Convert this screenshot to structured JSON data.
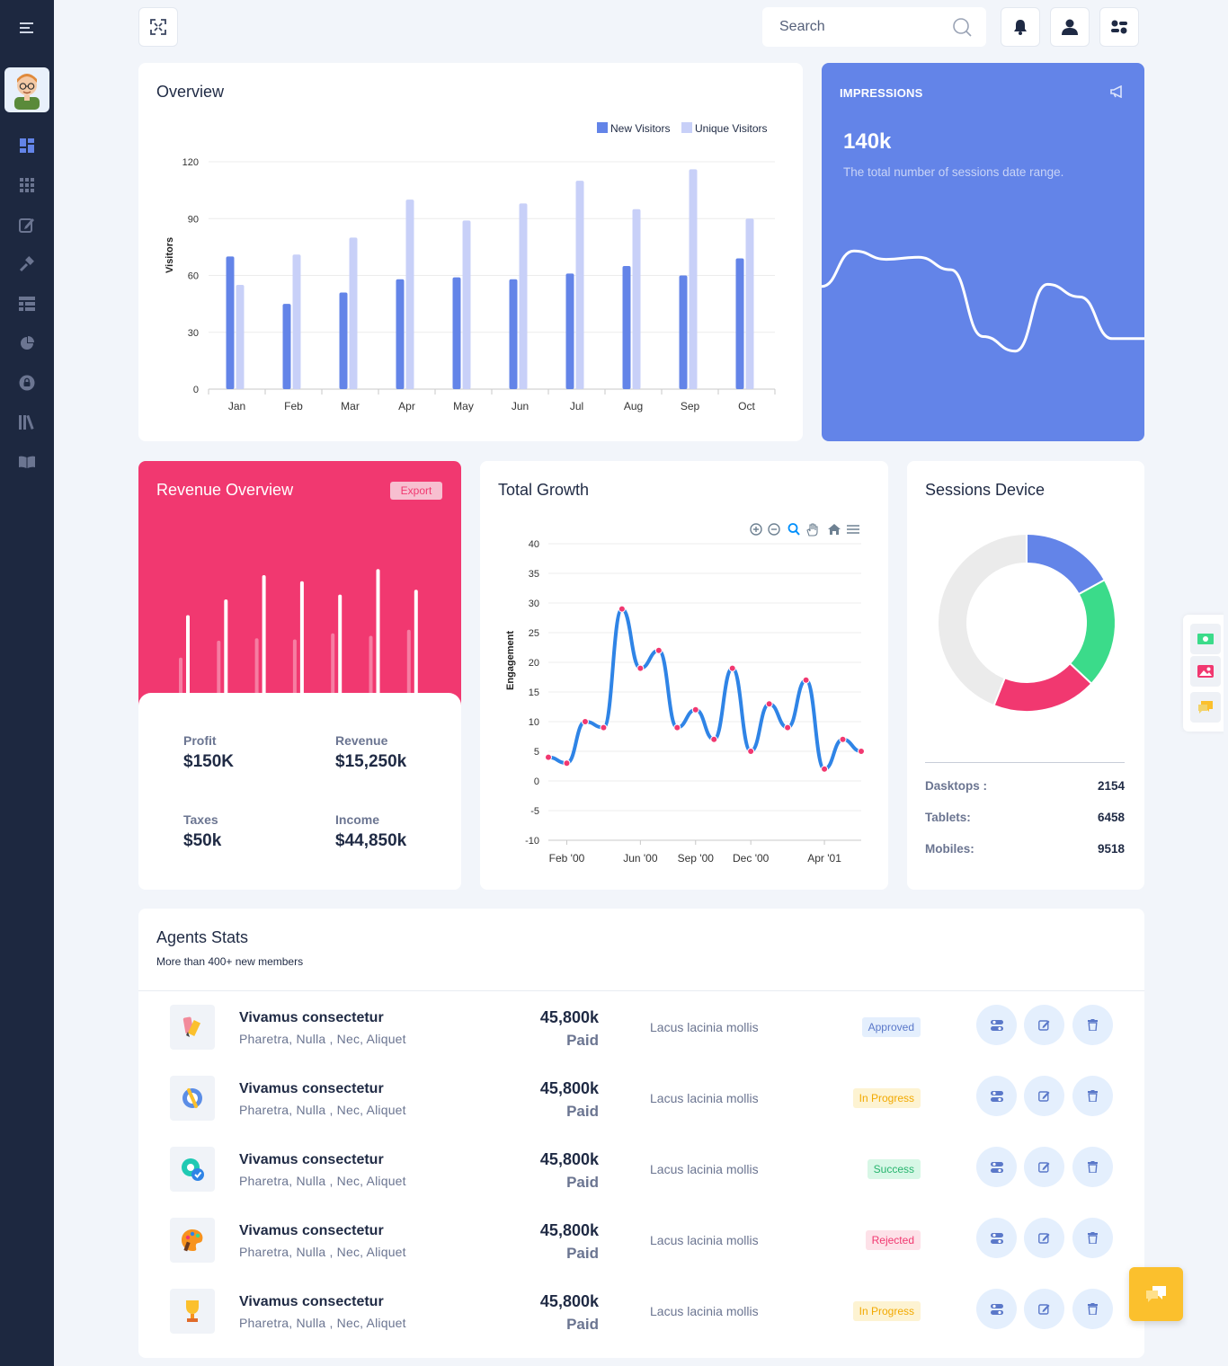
{
  "search": {
    "placeholder": "Search"
  },
  "overview": {
    "title": "Overview",
    "legend": [
      "New Visitors",
      "Unique Visitors"
    ]
  },
  "impressions": {
    "label": "IMPRESSIONS",
    "value": "140k",
    "description": "The total number of sessions date range."
  },
  "revenue": {
    "title": "Revenue Overview",
    "export_label": "Export",
    "stats": [
      {
        "label": "Profit",
        "value": "$150K"
      },
      {
        "label": "Revenue",
        "value": "$15,250k"
      },
      {
        "label": "Taxes",
        "value": "$50k"
      },
      {
        "label": "Income",
        "value": "$44,850k"
      }
    ]
  },
  "growth": {
    "title": "Total Growth"
  },
  "sessions": {
    "title": "Sessions Device",
    "rows": [
      {
        "label": "Dasktops :",
        "value": "2154"
      },
      {
        "label": "Tablets:",
        "value": "6458"
      },
      {
        "label": "Mobiles:",
        "value": "9518"
      }
    ]
  },
  "agents": {
    "title": "Agents Stats",
    "subtitle": "More than 400+ new members",
    "rows": [
      {
        "icon": "pencil-paint-icon",
        "name": "Vivamus consectetur",
        "tags": "Pharetra, Nulla , Nec, Aliquet",
        "amount": "45,800k",
        "paid": "Paid",
        "desc": "Lacus lacinia mollis",
        "status": "Approved"
      },
      {
        "icon": "wrench-gear-icon",
        "name": "Vivamus consectetur",
        "tags": "Pharetra, Nulla , Nec, Aliquet",
        "amount": "45,800k",
        "paid": "Paid",
        "desc": "Lacus lacinia mollis",
        "status": "In Progress"
      },
      {
        "icon": "gear-check-icon",
        "name": "Vivamus consectetur",
        "tags": "Pharetra, Nulla , Nec, Aliquet",
        "amount": "45,800k",
        "paid": "Paid",
        "desc": "Lacus lacinia mollis",
        "status": "Success"
      },
      {
        "icon": "palette-icon",
        "name": "Vivamus consectetur",
        "tags": "Pharetra, Nulla , Nec, Aliquet",
        "amount": "45,800k",
        "paid": "Paid",
        "desc": "Lacus lacinia mollis",
        "status": "Rejected"
      },
      {
        "icon": "trophy-icon",
        "name": "Vivamus consectetur",
        "tags": "Pharetra, Nulla , Nec, Aliquet",
        "amount": "45,800k",
        "paid": "Paid",
        "desc": "Lacus lacinia mollis",
        "status": "In Progress"
      }
    ]
  },
  "colors": {
    "sidebar": "#1d2840",
    "primary": "#6384e8",
    "pink": "#f13870",
    "green": "#3bdb8a",
    "line_blue": "#2f84e6"
  },
  "chart_data": [
    {
      "type": "bar",
      "title": "",
      "xlabel": "",
      "ylabel": "Visitors",
      "categories": [
        "Jan",
        "Feb",
        "Mar",
        "Apr",
        "May",
        "Jun",
        "Jul",
        "Aug",
        "Sep",
        "Oct"
      ],
      "series": [
        {
          "name": "New Visitors",
          "values": [
            70,
            45,
            51,
            58,
            59,
            58,
            61,
            65,
            60,
            69
          ]
        },
        {
          "name": "Unique Visitors",
          "values": [
            55,
            71,
            80,
            100,
            89,
            98,
            110,
            95,
            116,
            90
          ]
        }
      ],
      "ylim": [
        0,
        120
      ],
      "yticks": [
        0,
        30,
        60,
        90,
        120
      ],
      "grid": true,
      "legend": "top-right"
    },
    {
      "type": "area",
      "title": "",
      "series": [
        {
          "values": [
            43,
            60,
            56,
            57,
            51,
            19,
            12,
            44,
            38,
            18,
            18
          ]
        }
      ]
    },
    {
      "type": "bar",
      "title": "",
      "series": [
        {
          "values": [
            67,
            80,
            100,
            95,
            84,
            105,
            88
          ]
        },
        {
          "values": [
            32,
            46,
            48,
            47,
            52,
            50,
            55
          ]
        }
      ]
    },
    {
      "type": "line",
      "title": "",
      "xlabel": "",
      "ylabel": "Engagement",
      "x": [
        "Jan '00",
        "Feb '00",
        "Mar '00",
        "Apr '00",
        "May '00",
        "Jun '00",
        "Jul '00",
        "Aug '00",
        "Sep '00",
        "Oct '00",
        "Nov '00",
        "Dec '00",
        "Jan '01",
        "Feb '01",
        "Mar '01",
        "Apr '01",
        "May '01",
        "Jun '01"
      ],
      "values": [
        4,
        3,
        10,
        9,
        29,
        19,
        22,
        9,
        12,
        7,
        19,
        5,
        13,
        9,
        17,
        2,
        7,
        5
      ],
      "xticks": [
        "Feb '00",
        "Jun '00",
        "Sep '00",
        "Dec '00",
        "Apr '01"
      ],
      "ylim": [
        -10,
        40
      ],
      "yticks": [
        -10,
        -5,
        0,
        5,
        10,
        15,
        20,
        25,
        30,
        35,
        40
      ],
      "grid": true
    },
    {
      "type": "pie",
      "title": "",
      "values": [
        17,
        20,
        19,
        44
      ],
      "colors": [
        "#6384e8",
        "#3bdb8a",
        "#f13870",
        "#ebebeb"
      ]
    }
  ]
}
